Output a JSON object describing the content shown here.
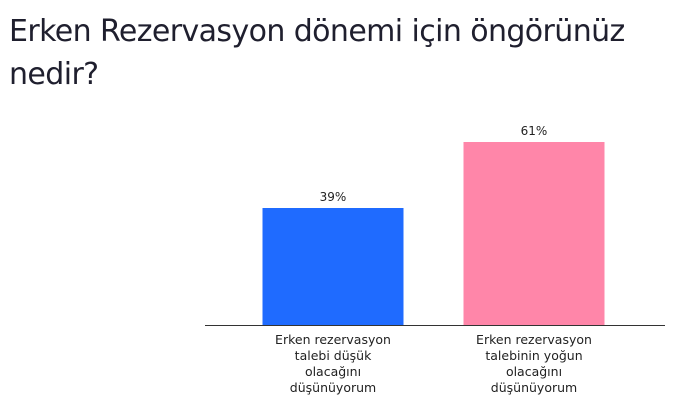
{
  "title": "Erken Rezervasyon dönemi için öngörünüz nedir?",
  "chart_data": {
    "type": "bar",
    "title": "Erken Rezervasyon dönemi için öngörünüz nedir?",
    "categories": [
      [
        "Erken rezervasyon",
        "talebi düşük",
        "olacağını",
        "düşünüyorum"
      ],
      [
        "Erken rezervasyon",
        "talebinin yoğun",
        "olacağını",
        "düşünüyorum"
      ]
    ],
    "values": [
      39,
      61
    ],
    "value_labels": [
      "39%",
      "61%"
    ],
    "colors": [
      "#1f6bff",
      "#ff86a9"
    ],
    "ylim": [
      0,
      100
    ],
    "grid": false,
    "legend": "none",
    "xlabel": "",
    "ylabel": ""
  }
}
